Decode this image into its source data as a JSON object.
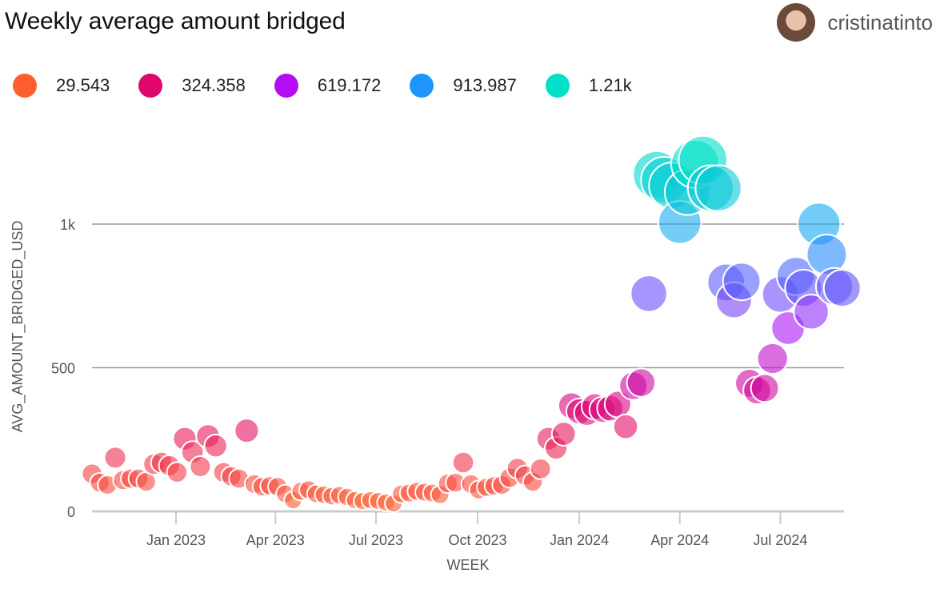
{
  "header": {
    "title": "Weekly average amount bridged",
    "username": "cristinatinto"
  },
  "chart_data": {
    "type": "scatter",
    "subtype": "bubble",
    "title": "Weekly average amount bridged",
    "xlabel": "WEEK",
    "ylabel": "AVG_AMOUNT_BRIDGED_USD",
    "ylim": [
      0,
      1250
    ],
    "yticks": [
      {
        "value": 0,
        "label": "0"
      },
      {
        "value": 500,
        "label": "500"
      },
      {
        "value": 1000,
        "label": "1k"
      }
    ],
    "xticks": [
      {
        "date": "2023-01-01",
        "label": "Jan 2023"
      },
      {
        "date": "2023-04-01",
        "label": "Apr 2023"
      },
      {
        "date": "2023-07-01",
        "label": "Jul 2023"
      },
      {
        "date": "2023-10-01",
        "label": "Oct 2023"
      },
      {
        "date": "2024-01-01",
        "label": "Jan 2024"
      },
      {
        "date": "2024-04-01",
        "label": "Apr 2024"
      },
      {
        "date": "2024-07-01",
        "label": "Jul 2024"
      }
    ],
    "xlim": [
      "2022-10-01",
      "2024-08-20"
    ],
    "week_start": "2022-10-17",
    "interval_days": 7,
    "values": [
      131,
      100,
      92,
      187,
      109,
      114,
      114,
      103,
      164,
      170,
      159,
      136,
      253,
      206,
      156,
      262,
      228,
      136,
      122,
      114,
      281,
      95,
      86,
      89,
      86,
      61,
      39,
      70,
      75,
      61,
      58,
      53,
      56,
      50,
      39,
      36,
      39,
      36,
      31,
      28,
      61,
      64,
      70,
      67,
      64,
      58,
      97,
      100,
      170,
      95,
      75,
      84,
      89,
      92,
      117,
      150,
      125,
      103,
      148,
      253,
      220,
      270,
      368,
      348,
      343,
      365,
      354,
      359,
      373,
      295,
      437,
      448,
      758,
      1172,
      1153,
      1134,
      1006,
      1111,
      1209,
      1223,
      1125,
      1125,
      797,
      735,
      800,
      446,
      421,
      429,
      532,
      755,
      638,
      819,
      777,
      694,
      1000,
      894,
      783,
      777
    ],
    "legend": {
      "placement": "top-left",
      "entries": [
        {
          "label": "29.543",
          "value": 29.543,
          "color": "#FF5E2E"
        },
        {
          "label": "324.358",
          "value": 324.358,
          "color": "#E0066B"
        },
        {
          "label": "619.172",
          "value": 619.172,
          "color": "#B40DF5"
        },
        {
          "label": "913.987",
          "value": 913.987,
          "color": "#1E94FF"
        },
        {
          "label": "1.21k",
          "value": 1208.8,
          "color": "#00E0C8"
        }
      ]
    },
    "grid": true
  }
}
